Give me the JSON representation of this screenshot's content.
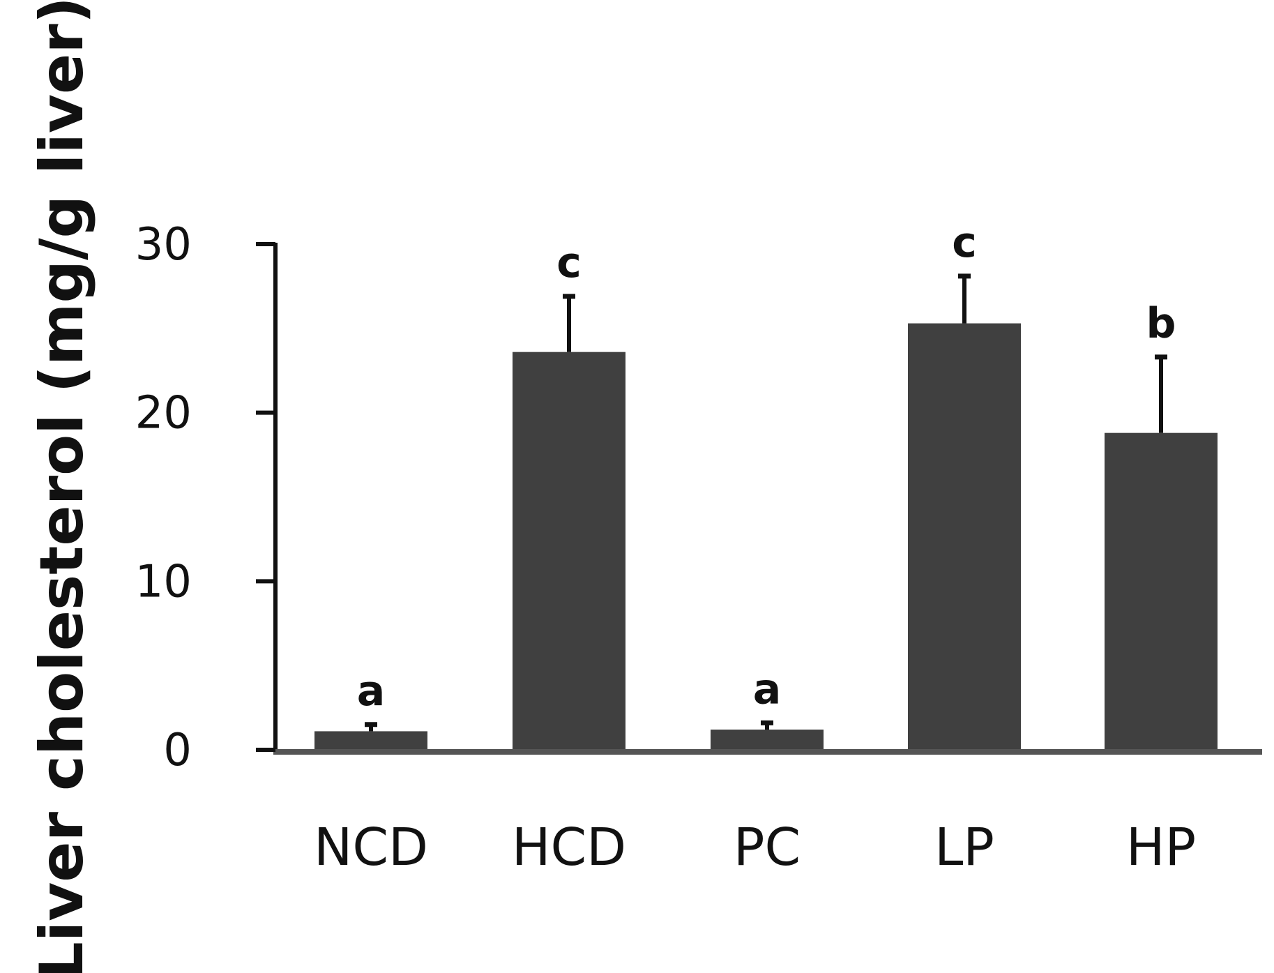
{
  "chart_data": {
    "type": "bar",
    "title": "",
    "xlabel": "",
    "ylabel": "Liver cholesterol (mg/g liver)",
    "ylim": [
      0,
      30
    ],
    "yticks": [
      0,
      10,
      20,
      30
    ],
    "ytick_labels": [
      "0",
      "10",
      "20",
      "30"
    ],
    "grid": false,
    "categories": [
      "NCD",
      "HCD",
      "PC",
      "LP",
      "HP"
    ],
    "values": [
      1.1,
      23.6,
      1.2,
      25.3,
      18.8
    ],
    "error": [
      0.4,
      3.3,
      0.4,
      2.8,
      4.5
    ],
    "significance_letters": [
      "a",
      "c",
      "a",
      "c",
      "b"
    ],
    "colors": {
      "bar": "#404040",
      "axis": "#111111",
      "baseline": "#555555",
      "text": "#111111"
    }
  }
}
